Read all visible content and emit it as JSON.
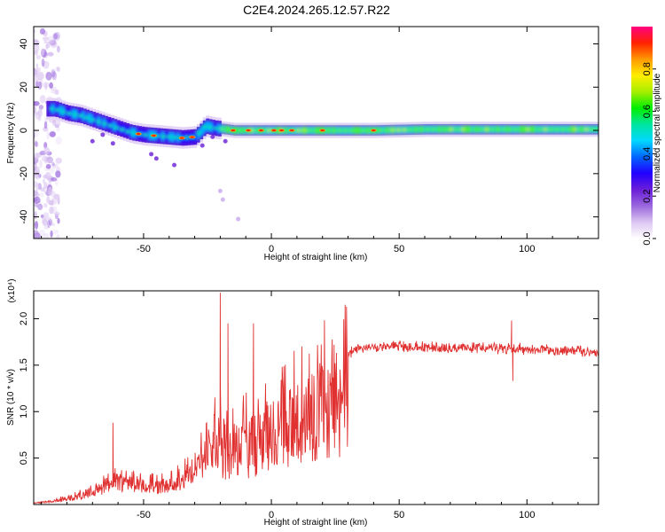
{
  "figure_title": "C2E4.2024.265.12.57.R22",
  "chart_data": [
    {
      "type": "heatmap",
      "xlabel": "Height of straight line (km)",
      "ylabel": "Frequency (Hz)",
      "xlim": [
        -93,
        128
      ],
      "ylim": [
        -50,
        48
      ],
      "xticks": [
        -50,
        0,
        50,
        100
      ],
      "yticks": [
        40,
        20,
        0,
        -20,
        -40
      ],
      "colorbar": {
        "label": "Normalized spectral amplitude",
        "range": [
          0.0,
          1.0
        ],
        "ticks": [
          0.0,
          0.2,
          0.4,
          0.6,
          0.8
        ],
        "colors": [
          "#ffffff",
          "#dcc6f2",
          "#9a66dd",
          "#6a1ed8",
          "#2200ff",
          "#0066ff",
          "#00d8ff",
          "#00e6a0",
          "#00ee00",
          "#a6ee00",
          "#ffee00",
          "#ff9900",
          "#ff2200",
          "#ff0080"
        ]
      },
      "ridge": {
        "x": [
          -85,
          -80,
          -75,
          -70,
          -65,
          -60,
          -55,
          -50,
          -45,
          -40,
          -35,
          -30,
          -26,
          -22,
          -18,
          -15,
          -10,
          -5,
          0,
          10,
          20,
          40,
          60,
          80,
          100,
          128
        ],
        "y": [
          10,
          8,
          7,
          5,
          3,
          1,
          -1,
          -2,
          -2.5,
          -3,
          -3.5,
          -3,
          2,
          1,
          0.5,
          0,
          0,
          0,
          0,
          0,
          0,
          0,
          0.5,
          0.5,
          0.5,
          0.5
        ]
      }
    },
    {
      "type": "line",
      "xlabel": "Height of straight line (km)",
      "ylabel": "SNR (10 * v/v)",
      "y_multiplier": "(x10⁴)",
      "xlim": [
        -93,
        128
      ],
      "ylim": [
        0,
        2.3
      ],
      "xticks": [
        -50,
        0,
        50,
        100
      ],
      "yticks": [
        0.5,
        1.0,
        1.5,
        2.0
      ],
      "ytick_labels": [
        "0.5",
        "1.0",
        "1.5",
        "2.0"
      ],
      "color": "#e03030",
      "envelope": {
        "x": [
          -93,
          -85,
          -80,
          -75,
          -70,
          -65,
          -62,
          -58,
          -55,
          -50,
          -45,
          -40,
          -35,
          -30,
          -25,
          -22,
          -20,
          -18,
          -15,
          -10,
          -5,
          0,
          5,
          10,
          15,
          20,
          25,
          30,
          35,
          40,
          50,
          60,
          70,
          80,
          90,
          94,
          96,
          100,
          110,
          120,
          128
        ],
        "y": [
          0.02,
          0.05,
          0.08,
          0.12,
          0.18,
          0.25,
          0.35,
          0.3,
          0.3,
          0.28,
          0.25,
          0.28,
          0.35,
          0.5,
          0.7,
          0.9,
          1.0,
          0.8,
          0.85,
          0.9,
          1.0,
          1.1,
          1.2,
          1.35,
          1.45,
          1.55,
          1.62,
          1.68,
          1.72,
          1.74,
          1.75,
          1.74,
          1.73,
          1.73,
          1.72,
          1.72,
          1.72,
          1.71,
          1.71,
          1.7,
          1.67
        ]
      },
      "peaks": [
        {
          "x": -62,
          "y": 0.88
        },
        {
          "x": -20,
          "y": 2.28
        },
        {
          "x": -17,
          "y": 1.95
        },
        {
          "x": -7,
          "y": 1.95
        },
        {
          "x": 94,
          "y": 1.98
        },
        {
          "x": 94.5,
          "y": 1.33
        }
      ]
    }
  ]
}
